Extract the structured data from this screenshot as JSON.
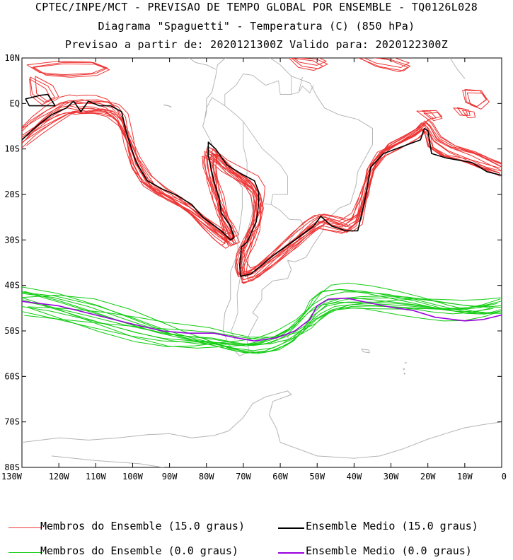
{
  "title": {
    "line1": "CPTEC/INPE/MCT - PREVISAO DE TEMPO GLOBAL POR ENSEMBLE - TQ0126L028",
    "line2": "Diagrama \"Spaguetti\" - Temperatura (C) (850 hPa)",
    "line3": "Previsao a partir de: 2020121300Z  Valido para: 2020122300Z"
  },
  "axes": {
    "lat_labels": [
      "10N",
      "EQ",
      "10S",
      "20S",
      "30S",
      "40S",
      "50S",
      "60S",
      "70S",
      "80S"
    ],
    "lon_labels": [
      "130W",
      "120W",
      "110W",
      "100W",
      "90W",
      "80W",
      "70W",
      "60W",
      "50W",
      "40W",
      "30W",
      "20W",
      "10W",
      "0"
    ]
  },
  "chart_data": {
    "type": "map",
    "title": "Diagrama \"Spaguetti\" - Temperatura (C) (850 hPa)",
    "lon_range": [
      -130,
      0
    ],
    "lat_range": [
      -80,
      10
    ],
    "contours": {
      "mean_15": {
        "name": "Ensemble Medio (15.0 graus)",
        "color": "#000000",
        "segments": [
          [
            [
              -125,
              1.8
            ],
            [
              -123,
              2
            ],
            [
              -121,
              -0.5
            ],
            [
              -124.5,
              -0.5
            ],
            [
              -128,
              -0.5
            ],
            [
              -129,
              1
            ]
          ],
          [
            [
              -130,
              -8
            ],
            [
              -126,
              -5
            ],
            [
              -122,
              -2.5
            ],
            [
              -118,
              -1
            ],
            [
              -116,
              0.5
            ],
            [
              -114,
              -1.8
            ],
            [
              -112,
              0.5
            ],
            [
              -109,
              -0.5
            ],
            [
              -106,
              -0.5
            ],
            [
              -103,
              -1.8
            ],
            [
              -101.5,
              -7
            ],
            [
              -99,
              -13
            ],
            [
              -96,
              -17
            ],
            [
              -92,
              -18.8
            ],
            [
              -88,
              -20.2
            ],
            [
              -84,
              -22.2
            ],
            [
              -81,
              -25
            ],
            [
              -76,
              -28
            ],
            [
              -73.5,
              -30
            ],
            [
              -72.5,
              -29.5
            ],
            [
              -73.5,
              -27
            ],
            [
              -76,
              -24
            ],
            [
              -76.5,
              -21
            ],
            [
              -78,
              -17
            ],
            [
              -79.5,
              -11.5
            ],
            [
              -79.5,
              -8.5
            ],
            [
              -77.5,
              -10
            ],
            [
              -74.5,
              -13.5
            ],
            [
              -70.5,
              -15.5
            ],
            [
              -67,
              -17
            ],
            [
              -65.8,
              -19.5
            ],
            [
              -66,
              -23
            ],
            [
              -66.5,
              -26
            ],
            [
              -69,
              -30.5
            ],
            [
              -70.5,
              -31.5
            ],
            [
              -71,
              -35.5
            ],
            [
              -70.8,
              -38
            ],
            [
              -68,
              -37.5
            ],
            [
              -62,
              -33.5
            ],
            [
              -56,
              -30
            ],
            [
              -51,
              -27
            ],
            [
              -49,
              -24.8
            ],
            [
              -46,
              -27
            ],
            [
              -42,
              -28
            ],
            [
              -39,
              -28
            ],
            [
              -37,
              -21
            ],
            [
              -35.5,
              -14
            ],
            [
              -32,
              -11
            ],
            [
              -27,
              -9.5
            ],
            [
              -22,
              -8
            ],
            [
              -21,
              -5.5
            ],
            [
              -20,
              -6
            ],
            [
              -19,
              -11
            ],
            [
              -15,
              -12
            ],
            [
              -8,
              -13
            ],
            [
              -4,
              -15
            ],
            [
              0,
              -15.8
            ]
          ]
        ]
      },
      "mean_0": {
        "name": "Ensemble Medio (0.0 graus)",
        "color": "#9900dd",
        "segments": [
          [
            [
              -130,
              -43.5
            ],
            [
              -120,
              -44.5
            ],
            [
              -110,
              -46.5
            ],
            [
              -100,
              -48.5
            ],
            [
              -92,
              -50
            ],
            [
              -85,
              -50.5
            ],
            [
              -78,
              -50.5
            ],
            [
              -72,
              -51.5
            ],
            [
              -67,
              -52.2
            ],
            [
              -61,
              -51.5
            ],
            [
              -56,
              -50
            ],
            [
              -52,
              -47.5
            ],
            [
              -50,
              -44.5
            ],
            [
              -47,
              -43
            ],
            [
              -42,
              -42.8
            ],
            [
              -36,
              -43.8
            ],
            [
              -30,
              -44.8
            ],
            [
              -24,
              -45.5
            ],
            [
              -18,
              -47
            ],
            [
              -10,
              -47.8
            ],
            [
              -5,
              -47.5
            ],
            [
              0,
              -46.5
            ]
          ]
        ]
      },
      "members_15": {
        "name": "Membros do Ensemble (15.0 graus)",
        "color": "#ee3333",
        "count": 14
      },
      "members_0": {
        "name": "Membros do Ensemble (0.0 graus)",
        "color": "#11cc11",
        "count": 14
      }
    }
  },
  "legend": {
    "items": [
      {
        "label": "Membros do Ensemble (15.0 graus)",
        "color": "#ee3333"
      },
      {
        "label": "Ensemble Medio (15.0 graus)",
        "color": "#000000"
      },
      {
        "label": "Membros do Ensemble (0.0 graus)",
        "color": "#11cc11"
      },
      {
        "label": "Ensemble Medio (0.0 graus)",
        "color": "#9900dd"
      }
    ]
  }
}
